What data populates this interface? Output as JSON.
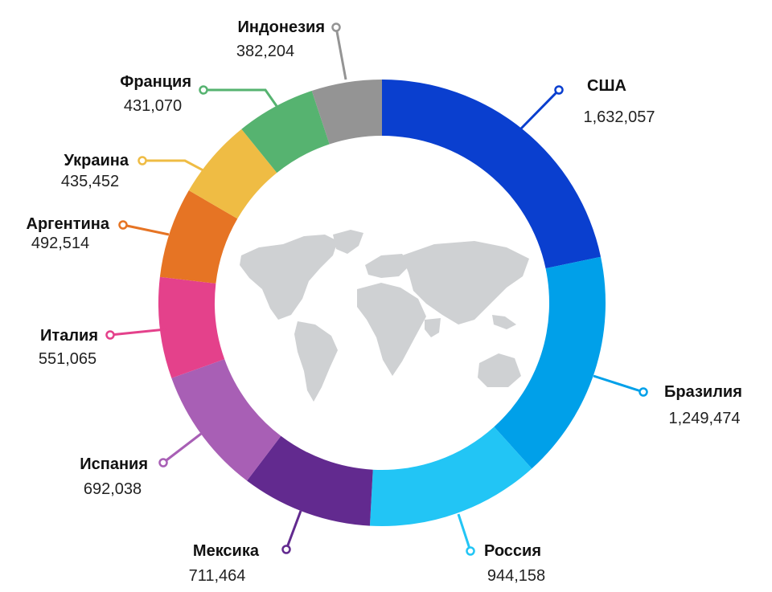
{
  "chart_data": {
    "type": "pie",
    "variant": "donut",
    "center_image": "world-map",
    "categories": [
      "США",
      "Бразилия",
      "Россия",
      "Мексика",
      "Испания",
      "Италия",
      "Аргентина",
      "Украина",
      "Франция",
      "Индонезия"
    ],
    "values": [
      1632057,
      1249474,
      944158,
      711464,
      692038,
      551065,
      492514,
      435452,
      431070,
      382204
    ],
    "value_labels": [
      "1,632,057",
      "1,249,474",
      "944,158",
      "711,464",
      "692,038",
      "551,065",
      "492,514",
      "435,452",
      "431,070",
      "382,204"
    ],
    "colors": [
      "#0a3fcf",
      "#00a0e9",
      "#22c5f5",
      "#622a8f",
      "#a85fb5",
      "#e4418b",
      "#e67424",
      "#efbc44",
      "#56b370",
      "#949494"
    ],
    "map_color": "#cfd1d3"
  }
}
